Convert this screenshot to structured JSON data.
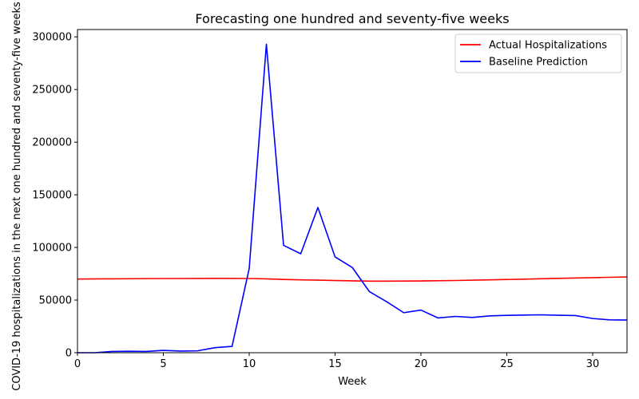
{
  "chart_data": {
    "type": "line",
    "title": "Forecasting one hundred and seventy-five weeks",
    "xlabel": "Week",
    "ylabel": "COVID-19 hospitalizations in the next one hundred and seventy-five weeks",
    "xlim": [
      0,
      32
    ],
    "ylim": [
      0,
      307000
    ],
    "xticks": [
      0,
      5,
      10,
      15,
      20,
      25,
      30
    ],
    "yticks": [
      0,
      50000,
      100000,
      150000,
      200000,
      250000,
      300000
    ],
    "grid": false,
    "legend_position": "top-right",
    "series": [
      {
        "name": "Actual Hospitalizations",
        "color": "#ff0000",
        "x": [
          0,
          2,
          4,
          6,
          8,
          10,
          11,
          12,
          14,
          16,
          17,
          18,
          20,
          22,
          24,
          26,
          28,
          30,
          32
        ],
        "y": [
          70000,
          70200,
          70400,
          70500,
          70600,
          70500,
          70200,
          69600,
          68900,
          68300,
          68000,
          68000,
          68200,
          68600,
          69200,
          69900,
          70600,
          71300,
          72000
        ]
      },
      {
        "name": "Baseline Prediction",
        "color": "#0000ff",
        "x": [
          0,
          1,
          2,
          3,
          4,
          5,
          6,
          7,
          8,
          9,
          10,
          11,
          12,
          13,
          14,
          15,
          16,
          17,
          18,
          19,
          20,
          21,
          22,
          23,
          24,
          25,
          26,
          27,
          28,
          29,
          30,
          31,
          32
        ],
        "y": [
          0,
          0,
          1200,
          1400,
          1200,
          2200,
          1600,
          1800,
          4800,
          6000,
          80000,
          293000,
          102000,
          94000,
          138000,
          91000,
          81000,
          58000,
          48500,
          38000,
          40500,
          33000,
          34500,
          33500,
          35000,
          35500,
          35800,
          36000,
          35600,
          35300,
          32500,
          31200,
          31000
        ]
      }
    ]
  }
}
